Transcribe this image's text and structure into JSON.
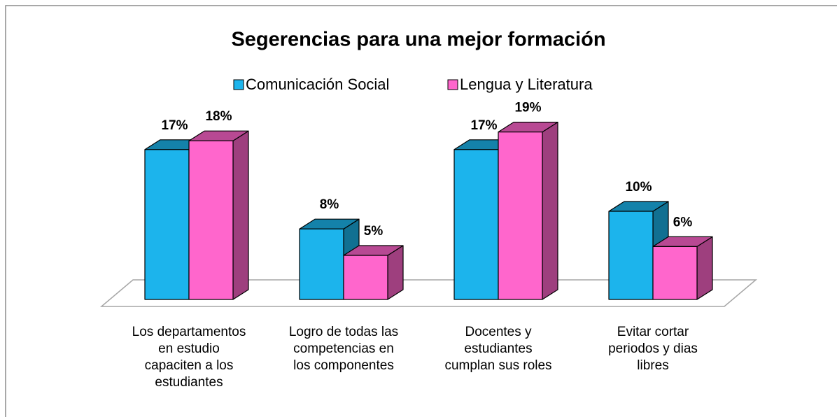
{
  "chart_data": {
    "type": "bar3d",
    "title": "Segerencias para una mejor formación",
    "categories": [
      "Los departamentos en estudio capaciten a los estudiantes",
      "Logro de todas las competencias en los componentes",
      "Docentes y estudiantes cumplan sus roles",
      "Evitar cortar periodos y dias libres"
    ],
    "series": [
      {
        "name": "Comunicación Social",
        "color": "#1cb4ec",
        "values": [
          17,
          8,
          17,
          10
        ],
        "value_labels": [
          "17%",
          "8%",
          "17%",
          "10%"
        ]
      },
      {
        "name": "Lengua y Literatura",
        "color": "#ff66cc",
        "values": [
          18,
          5,
          19,
          6
        ],
        "value_labels": [
          "18%",
          "5%",
          "19%",
          "6%"
        ]
      }
    ],
    "ylim": [
      0,
      20
    ],
    "legend": "top"
  }
}
